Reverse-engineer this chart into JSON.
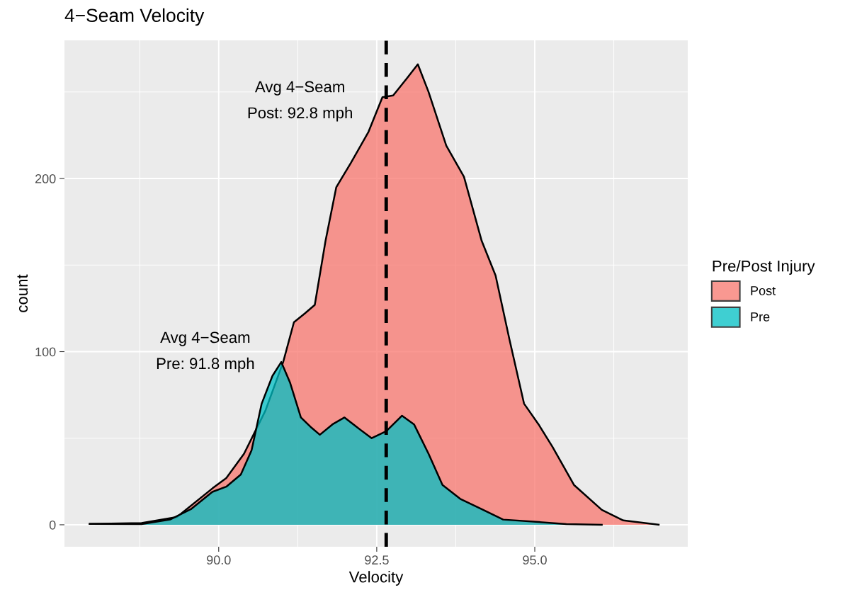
{
  "chart_data": {
    "type": "area",
    "title": "4−Seam Velocity",
    "xlabel": "Velocity",
    "ylabel": "count",
    "legend_title": "Pre/Post Injury",
    "series": [
      {
        "name": "Post",
        "color": "#f8766d",
        "x": [
          87.96,
          88.78,
          89.34,
          89.9,
          90.12,
          90.4,
          90.74,
          91.02,
          91.19,
          91.36,
          91.52,
          91.69,
          91.86,
          92.09,
          92.37,
          92.59,
          92.76,
          92.98,
          93.15,
          93.32,
          93.6,
          93.88,
          94.16,
          94.38,
          94.6,
          94.83,
          95.06,
          95.28,
          95.62,
          96.06,
          96.4,
          96.96
        ],
        "values": [
          0.5,
          1,
          4.5,
          21,
          27,
          41,
          66,
          94,
          117,
          122,
          127,
          164,
          195,
          209,
          227,
          247,
          248,
          258,
          266,
          250,
          219,
          201,
          164,
          144,
          107,
          70,
          58,
          45,
          23,
          8.6,
          2.5,
          0
        ]
      },
      {
        "name": "Pre",
        "color": "#00bfc4",
        "x": [
          87.96,
          88.78,
          89.23,
          89.56,
          89.9,
          90.12,
          90.35,
          90.52,
          90.68,
          90.85,
          90.99,
          91.13,
          91.3,
          91.47,
          91.6,
          91.8,
          91.99,
          92.2,
          92.42,
          92.65,
          92.9,
          93.09,
          93.32,
          93.54,
          93.82,
          94.16,
          94.5,
          95.06,
          95.5,
          96.06
        ],
        "values": [
          0.5,
          0.4,
          3,
          9,
          19,
          22,
          29,
          43,
          70,
          86,
          94,
          82,
          62,
          56,
          52,
          58,
          62,
          56,
          50,
          54,
          63,
          58,
          41,
          23,
          15,
          9,
          3,
          1.6,
          0.4,
          0
        ]
      }
    ],
    "xlim": [
      87.56,
      97.42
    ],
    "ylim": [
      -12.7,
      279.8
    ],
    "xticks": [
      {
        "value": 90,
        "label": "90.0"
      },
      {
        "value": 92.5,
        "label": "92.5"
      },
      {
        "value": 95,
        "label": "95.0"
      }
    ],
    "yticks": [
      0,
      100,
      200
    ],
    "ref_lines": [
      {
        "axis": "x",
        "value": 92.65,
        "color": "#000000",
        "line_style": "dashed"
      }
    ],
    "annotations": [
      "Avg 4−Seam\nPost: 92.8 mph",
      "Avg 4−Seam\nPre: 91.8 mph"
    ],
    "grid": true,
    "legend": "right"
  }
}
